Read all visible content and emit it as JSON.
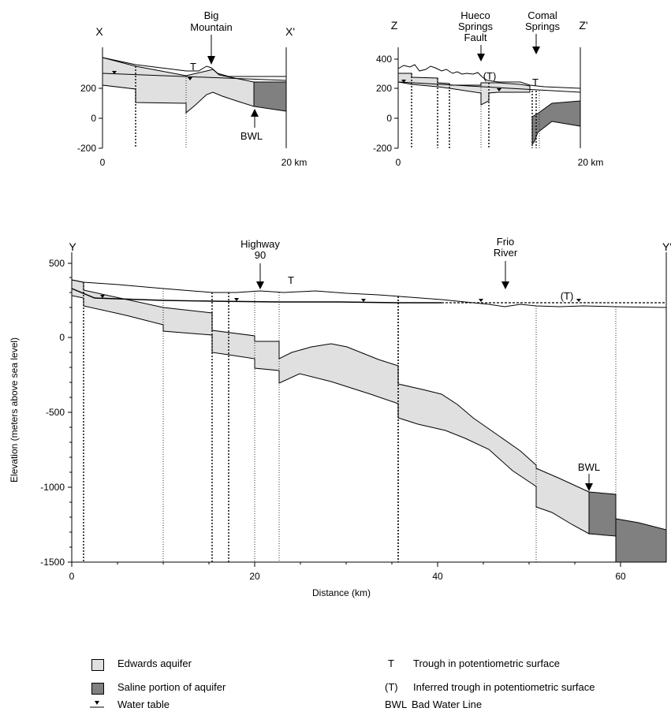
{
  "panels": {
    "top_left": {
      "left_label": "X",
      "right_label": "X'",
      "y_ticks": [
        "200",
        "0",
        "-200"
      ],
      "x_ticks": [
        "0",
        "20 km"
      ],
      "annotations": {
        "big_mountain": [
          "Big",
          "Mountain"
        ],
        "trough": "T",
        "bwl": "BWL"
      }
    },
    "top_right": {
      "left_label": "Z",
      "right_label": "Z'",
      "y_ticks": [
        "400",
        "200",
        "0",
        "-200"
      ],
      "x_ticks": [
        "0",
        "20 km"
      ],
      "annotations": {
        "hueco": [
          "Hueco",
          "Springs",
          "Fault"
        ],
        "inferred_trough": "(T)",
        "comal": [
          "Comal",
          "Springs"
        ],
        "trough": "T"
      }
    },
    "bottom": {
      "left_label": "Y",
      "right_label": "Y'",
      "y_ticks": [
        "500",
        "0",
        "-500",
        "-1000",
        "-1500"
      ],
      "x_ticks": [
        "0",
        "20",
        "40",
        "60"
      ],
      "y_axis_label": "Elevation  (meters above sea level)",
      "x_axis_label": "Distance   (km)",
      "annotations": {
        "highway": [
          "Highway",
          "90"
        ],
        "trough": "T",
        "frio": [
          "Frio",
          "River"
        ],
        "inferred_trough": "(T)",
        "bwl": "BWL"
      }
    }
  },
  "legend": {
    "edwards": "Edwards aquifer",
    "saline": "Saline portion of aquifer",
    "water_table": "Water table",
    "trough": "Trough in potentiometric surface",
    "trough_symbol": "T",
    "inferred": "Inferred trough in potentiometric surface",
    "inferred_symbol": "(T)",
    "bwl": "Bad Water Line",
    "bwl_symbol": "BWL"
  },
  "colors": {
    "edwards": "#e0e0e0",
    "saline": "#808080",
    "line": "#000000"
  }
}
